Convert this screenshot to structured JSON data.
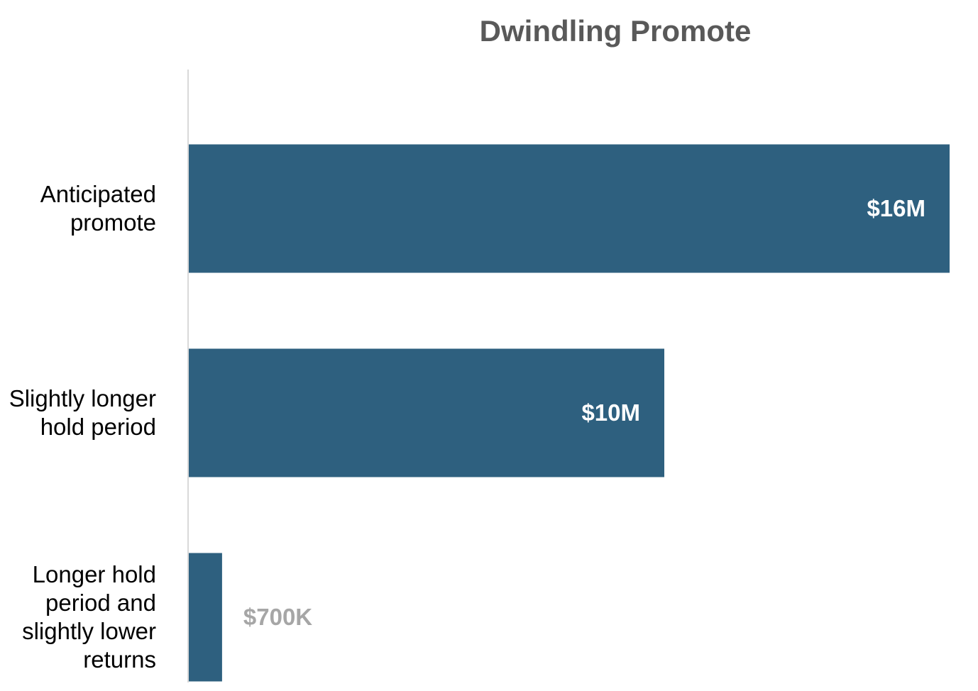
{
  "chart_data": {
    "type": "bar",
    "orientation": "horizontal",
    "title": "Dwindling Promote",
    "xlabel": "",
    "ylabel": "",
    "categories": [
      [
        "Anticipated",
        "promote"
      ],
      [
        "Slightly longer",
        "hold period"
      ],
      [
        "Longer hold",
        "period and",
        "slightly lower",
        "returns"
      ]
    ],
    "values": [
      16,
      10,
      0.7
    ],
    "value_unit": "$M",
    "data_labels": [
      "$16M",
      "$10M",
      "$700K"
    ],
    "xlim": [
      0,
      16
    ],
    "grid": false,
    "legend": "none",
    "axis_lines": [
      "left"
    ],
    "colors": {
      "bar": "#2e607f",
      "label_inside": "#ffffff",
      "label_outside": "#a6a6a6",
      "axis": "#d9d9d9",
      "title": "#595959",
      "category_text": "#000000"
    }
  }
}
